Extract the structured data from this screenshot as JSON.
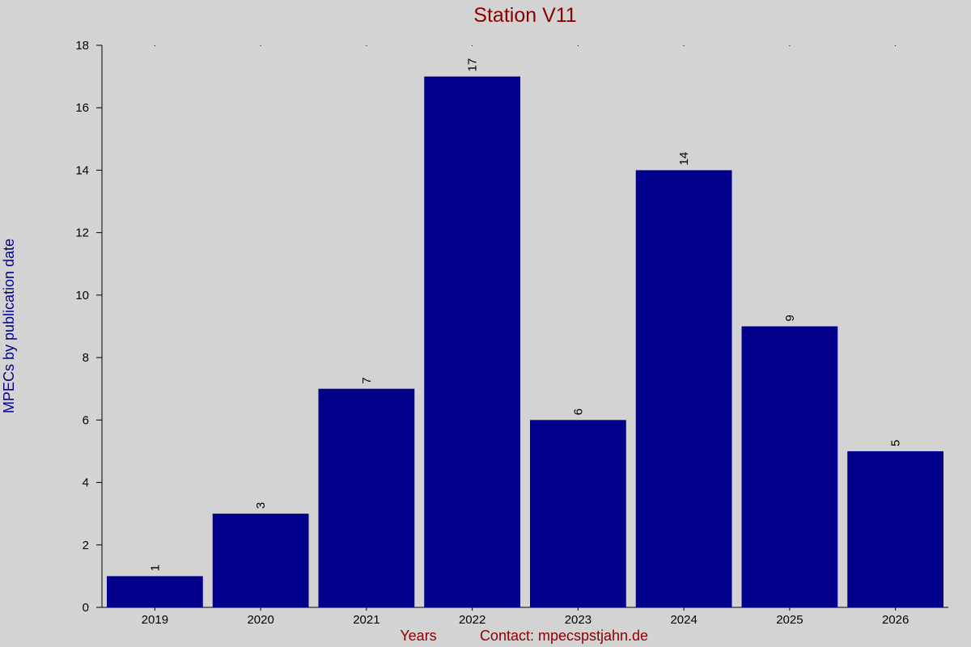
{
  "colors": {
    "bar": "#00008b",
    "title": "#8b0000",
    "ylabel": "#00008b",
    "footer": "#8b0000",
    "background": "#d3d3d3"
  },
  "footer": {
    "years_label": "Years",
    "contact": "Contact: mpecspstjahn.de"
  },
  "chart_data": {
    "type": "bar",
    "title": "Station V11",
    "xlabel": "Years",
    "ylabel": "MPECs by publication date",
    "categories": [
      "2019",
      "2020",
      "2021",
      "2022",
      "2023",
      "2024",
      "2025",
      "2026"
    ],
    "values": [
      1,
      3,
      7,
      17,
      6,
      14,
      9,
      5
    ],
    "ylim": [
      0,
      18
    ],
    "yticks": [
      0,
      2,
      4,
      6,
      8,
      10,
      12,
      14,
      16,
      18
    ],
    "data_labels": true,
    "grid": false
  }
}
